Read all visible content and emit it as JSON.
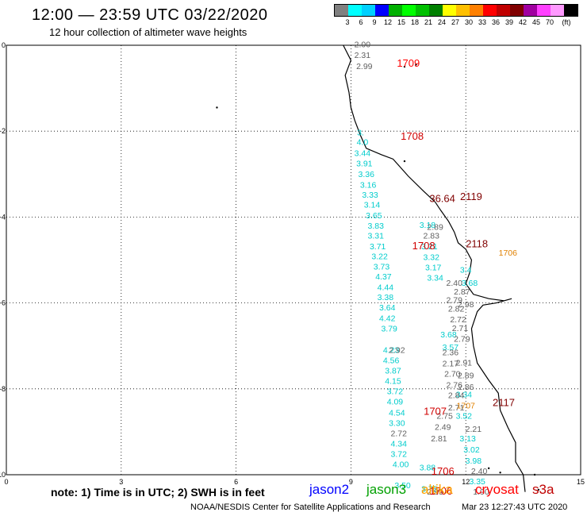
{
  "header": {
    "title": "12:00 — 23:59 UTC 03/22/2020",
    "subtitle": "12 hour collection of altimeter wave heights"
  },
  "color_scale": {
    "colors": [
      "#808080",
      "#00ffff",
      "#00d0ff",
      "#0000ff",
      "#00b000",
      "#00ff00",
      "#00c000",
      "#008000",
      "#ffff00",
      "#ffc000",
      "#ff8000",
      "#ff0000",
      "#c00000",
      "#800000",
      "#a000a0",
      "#ff40ff",
      "#ff99ff",
      "#000000"
    ],
    "labels": [
      "3",
      "6",
      "9",
      "12",
      "15",
      "18",
      "21",
      "24",
      "27",
      "30",
      "33",
      "36",
      "39",
      "42",
      "45",
      "70",
      "(ft)"
    ]
  },
  "axes": {
    "x_ticks": [
      "0",
      "3",
      "6",
      "9",
      "12",
      "15"
    ],
    "y_ticks": [
      "0",
      "-2",
      "-4",
      "-6",
      "-8",
      "-10"
    ],
    "x_range": [
      0,
      15
    ],
    "y_range": [
      -10,
      0
    ]
  },
  "tracks": [
    {
      "name": "jason2",
      "color": "#00cccc",
      "points": [
        [
          9.25,
          -1.75,
          ""
        ],
        [
          9.25,
          -2.1,
          "3."
        ],
        [
          9.3,
          -2.32,
          "4.0"
        ],
        [
          9.3,
          -2.58,
          "3.44"
        ],
        [
          9.35,
          -2.82,
          "3.91"
        ],
        [
          9.4,
          -3.07,
          "3.36"
        ],
        [
          9.45,
          -3.32,
          "3.16"
        ],
        [
          9.5,
          -3.55,
          "3.33"
        ],
        [
          9.55,
          -3.78,
          "3.14"
        ],
        [
          9.6,
          -4.03,
          "3.65"
        ],
        [
          9.65,
          -4.27,
          "3.83"
        ],
        [
          9.65,
          -4.5,
          "3.31"
        ],
        [
          9.7,
          -4.75,
          "3.71"
        ],
        [
          9.75,
          -4.98,
          "3.22"
        ],
        [
          9.8,
          -5.22,
          "3.73"
        ],
        [
          9.85,
          -5.45,
          "4.37"
        ],
        [
          9.9,
          -5.7,
          "4.44"
        ],
        [
          9.9,
          -5.93,
          "3.38"
        ],
        [
          9.95,
          -6.17,
          "3.64"
        ],
        [
          9.95,
          -6.42,
          "4.42"
        ],
        [
          10.0,
          -6.66,
          "3.79"
        ],
        [
          10.05,
          -7.16,
          "4.23"
        ],
        [
          10.05,
          -7.4,
          "4.56"
        ],
        [
          10.1,
          -7.64,
          "3.87"
        ],
        [
          10.1,
          -7.88,
          "4.15"
        ],
        [
          10.15,
          -8.12,
          "3.72"
        ],
        [
          10.15,
          -8.36,
          "4.09"
        ],
        [
          10.2,
          -8.62,
          "4.54"
        ],
        [
          10.2,
          -8.86,
          "3.30"
        ],
        [
          10.25,
          -9.34,
          "4.34"
        ],
        [
          10.25,
          -9.58,
          "3.72"
        ],
        [
          10.3,
          -9.82,
          "4.00"
        ],
        [
          10.35,
          -10.31,
          "3.50"
        ]
      ]
    },
    {
      "name": "jason2-b",
      "color": "#00cccc",
      "points": [
        [
          11.0,
          -4.25,
          "3.18"
        ],
        [
          11.05,
          -4.75,
          "3.21"
        ],
        [
          11.1,
          -5.0,
          "3.32"
        ],
        [
          11.15,
          -5.24,
          "3.17"
        ],
        [
          11.2,
          -5.48,
          "3.34"
        ],
        [
          12.0,
          -5.3,
          "3.4"
        ],
        [
          12.1,
          -5.6,
          "3.68"
        ],
        [
          11.6,
          -7.1,
          "3.57"
        ],
        [
          11.55,
          -6.8,
          "3.68"
        ],
        [
          11.95,
          -8.2,
          "3.34"
        ],
        [
          11.95,
          -8.7,
          "3.52"
        ],
        [
          12.05,
          -9.22,
          "3.13"
        ],
        [
          12.15,
          -9.48,
          "3.02"
        ],
        [
          12.2,
          -9.74,
          "3.98"
        ],
        [
          12.3,
          -10.22,
          "3.35"
        ],
        [
          11.0,
          -9.9,
          "3.88"
        ],
        [
          11.05,
          -10.4,
          "3.75"
        ]
      ]
    },
    {
      "name": "grey",
      "color": "#606060",
      "points": [
        [
          9.3,
          -0.05,
          "2.00"
        ],
        [
          9.3,
          -0.3,
          "2.31"
        ],
        [
          9.35,
          -0.55,
          "2.99"
        ],
        [
          11.1,
          -4.5,
          "2.83"
        ],
        [
          11.2,
          -4.3,
          "2.89"
        ],
        [
          11.7,
          -5.6,
          "2.40"
        ],
        [
          11.9,
          -5.8,
          "2.87"
        ],
        [
          11.7,
          -6.0,
          "2.79"
        ],
        [
          12.0,
          -6.1,
          "2.98"
        ],
        [
          11.75,
          -6.2,
          "2.82"
        ],
        [
          11.8,
          -6.45,
          "2.72"
        ],
        [
          11.85,
          -6.65,
          "2.71"
        ],
        [
          11.9,
          -6.9,
          "2.79"
        ],
        [
          11.6,
          -7.22,
          "2.36"
        ],
        [
          11.6,
          -7.48,
          "2.17"
        ],
        [
          11.95,
          -7.46,
          "2.91"
        ],
        [
          11.65,
          -7.72,
          "2.70"
        ],
        [
          12.0,
          -7.75,
          "2.89"
        ],
        [
          11.7,
          -7.98,
          "2.76"
        ],
        [
          12.0,
          -8.02,
          "2.86"
        ],
        [
          11.75,
          -8.22,
          "2.84"
        ],
        [
          11.75,
          -8.5,
          "2.71"
        ],
        [
          11.45,
          -8.7,
          "2.75"
        ],
        [
          12.2,
          -9.0,
          "2.21"
        ],
        [
          11.4,
          -8.96,
          "2.49"
        ],
        [
          10.25,
          -9.1,
          "2.72"
        ],
        [
          11.3,
          -9.22,
          "2.81"
        ],
        [
          12.35,
          -9.98,
          "2.40"
        ],
        [
          11.2,
          -10.46,
          "2.99"
        ],
        [
          12.4,
          -10.46,
          "1.90"
        ],
        [
          10.2,
          -7.16,
          "2.92"
        ]
      ]
    },
    {
      "name": "orange",
      "color": "#e08000",
      "points": [
        [
          13.1,
          -4.9,
          "1706"
        ],
        [
          12.0,
          -8.46,
          "1707"
        ]
      ]
    }
  ],
  "time_labels": [
    {
      "text": "1709",
      "color": "#ff0000",
      "x": 10.2,
      "y": -0.5
    },
    {
      "text": "1708",
      "color": "#d00000",
      "x": 10.3,
      "y": -2.2
    },
    {
      "text": "1708",
      "color": "#d00000",
      "x": 10.6,
      "y": -4.75
    },
    {
      "text": "1707",
      "color": "#d00000",
      "x": 10.9,
      "y": -8.6
    },
    {
      "text": "1706",
      "color": "#d00000",
      "x": 11.1,
      "y": -10.0
    },
    {
      "text": "1706",
      "color": "#d00000",
      "x": 11.05,
      "y": -10.46
    },
    {
      "text": "2119",
      "color": "#800000",
      "x": 11.85,
      "y": -3.6
    },
    {
      "text": "2118",
      "color": "#800000",
      "x": 12.0,
      "y": -4.7
    },
    {
      "text": "2117",
      "color": "#800000",
      "x": 12.7,
      "y": -8.4
    },
    {
      "text": "36.64",
      "color": "#800000",
      "x": 11.05,
      "y": -3.65
    }
  ],
  "legend": {
    "note": "note: 1) Time is in UTC; 2) SWH is in feet",
    "satellites": [
      {
        "label": "jason2",
        "color": "#0000ff"
      },
      {
        "label": "jason3",
        "color": "#00a000"
      },
      {
        "label": "altika",
        "color": "#ffa000"
      },
      {
        "label": "cryosat",
        "color": "#ff0000"
      },
      {
        "label": "s3a",
        "color": "#c00000"
      }
    ]
  },
  "footer": {
    "credit": "NOAA/NESDIS Center for Satellite Applications and Research",
    "timestamp": "Mar 23 12:27:43 UTC 2020"
  }
}
